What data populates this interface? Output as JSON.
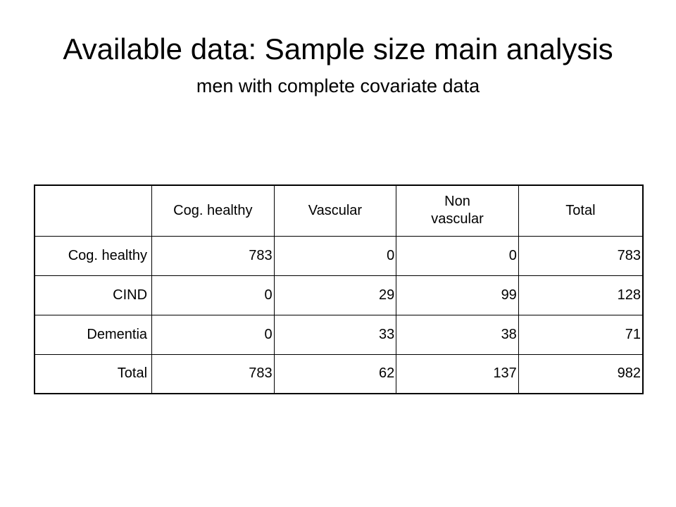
{
  "slide": {
    "title": "Available data: Sample size main analysis",
    "subtitle": "men with complete covariate data"
  },
  "table": {
    "columns": [
      "",
      "Cog. healthy",
      "Vascular",
      "Non vascular",
      "Total"
    ],
    "rows": [
      {
        "label": "Cog. healthy",
        "values": [
          "783",
          "0",
          "0",
          "783"
        ]
      },
      {
        "label": "CIND",
        "values": [
          "0",
          "29",
          "99",
          "128"
        ]
      },
      {
        "label": "Dementia",
        "values": [
          "0",
          "33",
          "38",
          "71"
        ]
      },
      {
        "label": "Total",
        "values": [
          "783",
          "62",
          "137",
          "982"
        ]
      }
    ]
  }
}
